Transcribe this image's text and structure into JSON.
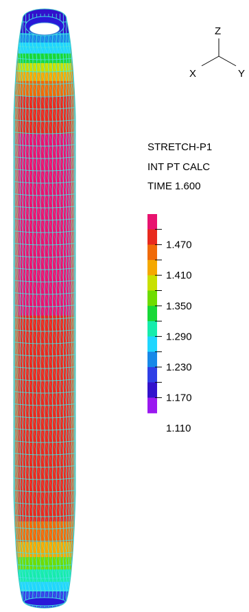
{
  "triad": {
    "z": "Z",
    "x": "X",
    "y": "Y"
  },
  "info": {
    "variable": "STRETCH-P1",
    "location": "INT PT CALC",
    "time": "TIME 1.600"
  },
  "legend": {
    "bands": [
      "#e8136f",
      "#e82a1e",
      "#f06a08",
      "#f5a800",
      "#c8e000",
      "#6edc00",
      "#17d837",
      "#16ecac",
      "#1fd6ff",
      "#1788e8",
      "#2f3fe6",
      "#3311cc",
      "#9a18f0"
    ],
    "tick_labels": [
      "1.470",
      "1.410",
      "1.350",
      "1.290",
      "1.230",
      "1.170",
      "1.110"
    ]
  },
  "mesh_color": "#40e0e0"
}
